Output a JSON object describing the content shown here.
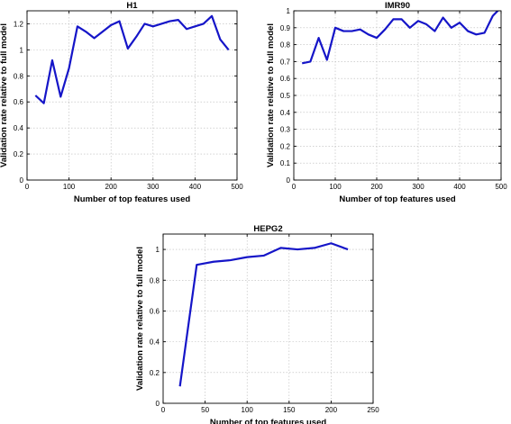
{
  "chart_data": [
    {
      "type": "line",
      "title": "H1",
      "xlabel": "Number of top features used",
      "ylabel": "Validation rate relative to full model",
      "xlim": [
        0,
        500
      ],
      "ylim": [
        0,
        1.3
      ],
      "xticks": [
        "0",
        "100",
        "200",
        "300",
        "400",
        "500"
      ],
      "yticks": [
        "0",
        "0.2",
        "0.4",
        "0.6",
        "0.8",
        "1",
        "1.2"
      ],
      "grid": true,
      "color": "#1515c8",
      "series": [
        {
          "x": [
            20,
            40,
            60,
            80,
            100,
            120,
            140,
            160,
            180,
            200,
            220,
            240,
            260,
            280,
            300,
            320,
            340,
            360,
            380,
            400,
            420,
            440,
            460,
            480
          ],
          "values": [
            0.65,
            0.59,
            0.92,
            0.64,
            0.86,
            1.18,
            1.14,
            1.09,
            1.14,
            1.19,
            1.22,
            1.01,
            1.1,
            1.2,
            1.18,
            1.2,
            1.22,
            1.23,
            1.16,
            1.18,
            1.2,
            1.26,
            1.08,
            1.0
          ]
        }
      ]
    },
    {
      "type": "line",
      "title": "IMR90",
      "xlabel": "Number of top features used",
      "ylabel": "Validation rate relative to full model",
      "xlim": [
        0,
        500
      ],
      "ylim": [
        0,
        1
      ],
      "xticks": [
        "0",
        "100",
        "200",
        "300",
        "400",
        "500"
      ],
      "yticks": [
        "0",
        "0.1",
        "0.2",
        "0.3",
        "0.4",
        "0.5",
        "0.6",
        "0.7",
        "0.8",
        "0.9",
        "1"
      ],
      "grid": true,
      "color": "#1515c8",
      "series": [
        {
          "x": [
            20,
            40,
            60,
            80,
            100,
            120,
            140,
            160,
            180,
            200,
            220,
            240,
            260,
            280,
            300,
            320,
            340,
            360,
            380,
            400,
            420,
            440,
            460,
            480,
            500
          ],
          "values": [
            0.69,
            0.7,
            0.84,
            0.71,
            0.9,
            0.88,
            0.88,
            0.89,
            0.86,
            0.84,
            0.89,
            0.95,
            0.95,
            0.9,
            0.94,
            0.92,
            0.88,
            0.96,
            0.9,
            0.93,
            0.88,
            0.86,
            0.87,
            0.97,
            1.02
          ]
        }
      ]
    },
    {
      "type": "line",
      "title": "HEPG2",
      "xlabel": "Number of top features used",
      "ylabel": "Validation rate relative to full model",
      "xlim": [
        0,
        250
      ],
      "ylim": [
        0,
        1.1
      ],
      "xticks": [
        "0",
        "50",
        "100",
        "150",
        "200",
        "250"
      ],
      "yticks": [
        "0",
        "0.2",
        "0.4",
        "0.6",
        "0.8",
        "1"
      ],
      "grid": true,
      "color": "#1515c8",
      "series": [
        {
          "x": [
            20,
            40,
            60,
            80,
            100,
            120,
            140,
            160,
            180,
            200,
            220
          ],
          "values": [
            0.11,
            0.9,
            0.92,
            0.93,
            0.95,
            0.96,
            1.01,
            1.0,
            1.01,
            1.04,
            1.0
          ]
        }
      ]
    }
  ]
}
